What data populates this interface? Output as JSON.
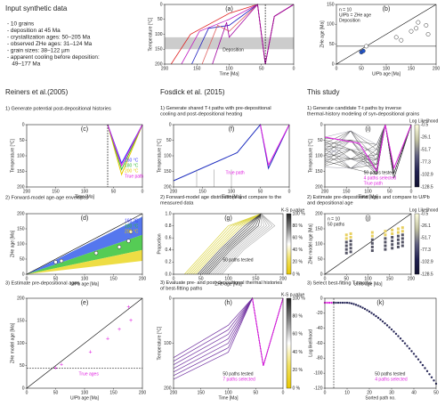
{
  "intro": {
    "title": "Input synthetic data",
    "bullets": [
      "- 10 grains",
      "- deposition at 45 Ma",
      "- crystallization ages: 50–205 Ma",
      "- observed ZHe ages: 31–124 Ma",
      "- grain sizes: 38–122 µm",
      "- apparent cooling before deposition:",
      "   49–177 Ma"
    ]
  },
  "columns": [
    "Reiners et al.(2005)",
    "Fosdick et al. (2015)",
    "This study"
  ],
  "steps": [
    [
      "1) Generate potential post-depositional histories",
      "2) Forward-model age-age envelopes",
      "3) Estimate pre-depositional ages"
    ],
    [
      "1) Generate shared T-t paths with pre-depositional cooling and post-depositional heating",
      "2) Forward-model age distributions and compare to the measured data",
      "3) Evaluate pre- and post-depositional thermal histories of best-fitting paths"
    ],
    [
      "1) Generate candidate T-t paths by inverse thermal-history modeling of syn-depositional grains",
      "2) Estimate pre-depositional ages and compare to U/Pb and depositional age",
      "3) Select best-fitting T-t paths"
    ]
  ],
  "panels": [
    {
      "id": "a",
      "letter": "(a)",
      "xlabel": "Time [Ma]",
      "ylabel": "Temperature [°C]",
      "xticks": [
        "200",
        "150",
        "100",
        "50",
        "0"
      ],
      "yticks": [
        "0",
        "50",
        "100",
        "150",
        "200"
      ],
      "notes": [
        "Deposition"
      ]
    },
    {
      "id": "b",
      "letter": "(b)",
      "xlabel": "U/Pb age [Ma]",
      "ylabel": "ZHe age [Ma]",
      "xticks": [
        "0",
        "50",
        "100",
        "150",
        "200"
      ],
      "yticks": [
        "150",
        "100",
        "50",
        "0"
      ],
      "notes": [
        "n = 10",
        "U/Pb = ZHe age",
        "Deposition"
      ]
    },
    {
      "id": "c",
      "letter": "(c)",
      "xlabel": "Time [Ma]",
      "ylabel": "Temperature [°C]",
      "xticks": [
        "200",
        "150",
        "100",
        "50",
        "0"
      ],
      "yticks": [
        "0",
        "50",
        "100",
        "150",
        "200"
      ],
      "legend": [
        {
          "name": "160 °C",
          "color": "#3333ff"
        },
        {
          "name": "180 °C",
          "color": "#33bb33"
        },
        {
          "name": "200 °C",
          "color": "#e8c800"
        },
        {
          "name": "True path",
          "color": "#e020e0"
        }
      ]
    },
    {
      "id": "f",
      "letter": "(f)",
      "xlabel": "Time [Ma]",
      "ylabel": "Temperature [°C]",
      "xticks": [
        "200",
        "150",
        "100",
        "50",
        "0"
      ],
      "yticks": [
        "0",
        "50",
        "100",
        "150",
        "200"
      ],
      "notes": [
        "True path"
      ]
    },
    {
      "id": "i",
      "letter": "(i)",
      "xlabel": "Time [Ma]",
      "ylabel": "Temperature [°C]",
      "xticks": [
        "200",
        "150",
        "100",
        "50",
        "0"
      ],
      "yticks": [
        "0",
        "50",
        "100",
        "150",
        "200"
      ],
      "notes": [
        "50 paths tested",
        "4 paths selected",
        "True path"
      ],
      "colorbar": {
        "title": "Log Likelihood",
        "ticks": [
          "-0.5",
          "-26.1",
          "-51.7",
          "-77.3",
          "-102.9",
          "-128.5"
        ]
      }
    },
    {
      "id": "d",
      "letter": "(d)",
      "xlabel": "U/Pb age [Ma]",
      "ylabel": "ZHe age [Ma]",
      "xticks": [
        "0",
        "50",
        "100",
        "150",
        "200"
      ],
      "yticks": [
        "200",
        "150",
        "100",
        "50",
        "0"
      ],
      "legend": [
        {
          "name": "160 °C",
          "color": "#3333ff"
        },
        {
          "name": "180 °C",
          "color": "#33bb33"
        },
        {
          "name": "200 °C",
          "color": "#e8c800"
        }
      ]
    },
    {
      "id": "g",
      "letter": "(g)",
      "xlabel": "ZHe age [Ma]",
      "ylabel": "Proportion",
      "xticks": [
        "0",
        "50",
        "100",
        "150",
        "200"
      ],
      "yticks": [
        "1.0",
        "0.8",
        "0.6",
        "0.4",
        "0.2",
        "0.0"
      ],
      "notes": [
        "50 paths tested"
      ],
      "colorbar": {
        "title": "K-S p-value",
        "ticks": [
          "100 %",
          "80 %",
          "60 %",
          "40 %",
          "20 %",
          "0 %"
        ]
      }
    },
    {
      "id": "j",
      "letter": "(j)",
      "xlabel": "U/Pb age [Ma]",
      "ylabel": "ZHe model age [Ma]",
      "xticks": [
        "0",
        "50",
        "100",
        "150",
        "200"
      ],
      "yticks": [
        "200",
        "150",
        "100",
        "50",
        "0"
      ],
      "notes": [
        "n = 10",
        "50 paths"
      ],
      "colorbar": {
        "title": "Log Likelihood",
        "ticks": [
          "-0.5",
          "-26.1",
          "-51.7",
          "-77.3",
          "-102.9",
          "-128.5"
        ]
      }
    },
    {
      "id": "e",
      "letter": "(e)",
      "xlabel": "U/Pb age [Ma]",
      "ylabel": "ZHe model age [Ma]",
      "xticks": [
        "0",
        "50",
        "100",
        "150",
        "200"
      ],
      "yticks": [
        "200",
        "150",
        "100",
        "50",
        "0"
      ],
      "notes": [
        "True ages"
      ]
    },
    {
      "id": "h",
      "letter": "(h)",
      "xlabel": "Time [Ma]",
      "ylabel": "Temperature [°C]",
      "xticks": [
        "200",
        "150",
        "100",
        "50",
        "0"
      ],
      "yticks": [
        "0",
        "100",
        "200"
      ],
      "notes": [
        "50 paths tested",
        "7 paths selected"
      ],
      "colorbar": {
        "title": "K-S p-value",
        "ticks": [
          "100 %",
          "80 %",
          "60 %",
          "40 %",
          "20 %",
          "0 %"
        ]
      }
    },
    {
      "id": "k",
      "letter": "(k)",
      "xlabel": "Sorted path no.",
      "ylabel": "Log likelihood",
      "xticks": [
        "0",
        "10",
        "20",
        "30",
        "40",
        "50"
      ],
      "yticks": [
        "0",
        "-20",
        "-40",
        "-60",
        "-80",
        "-100",
        "-120"
      ],
      "notes": [
        "50 paths tested",
        "4 paths selected"
      ]
    }
  ]
}
